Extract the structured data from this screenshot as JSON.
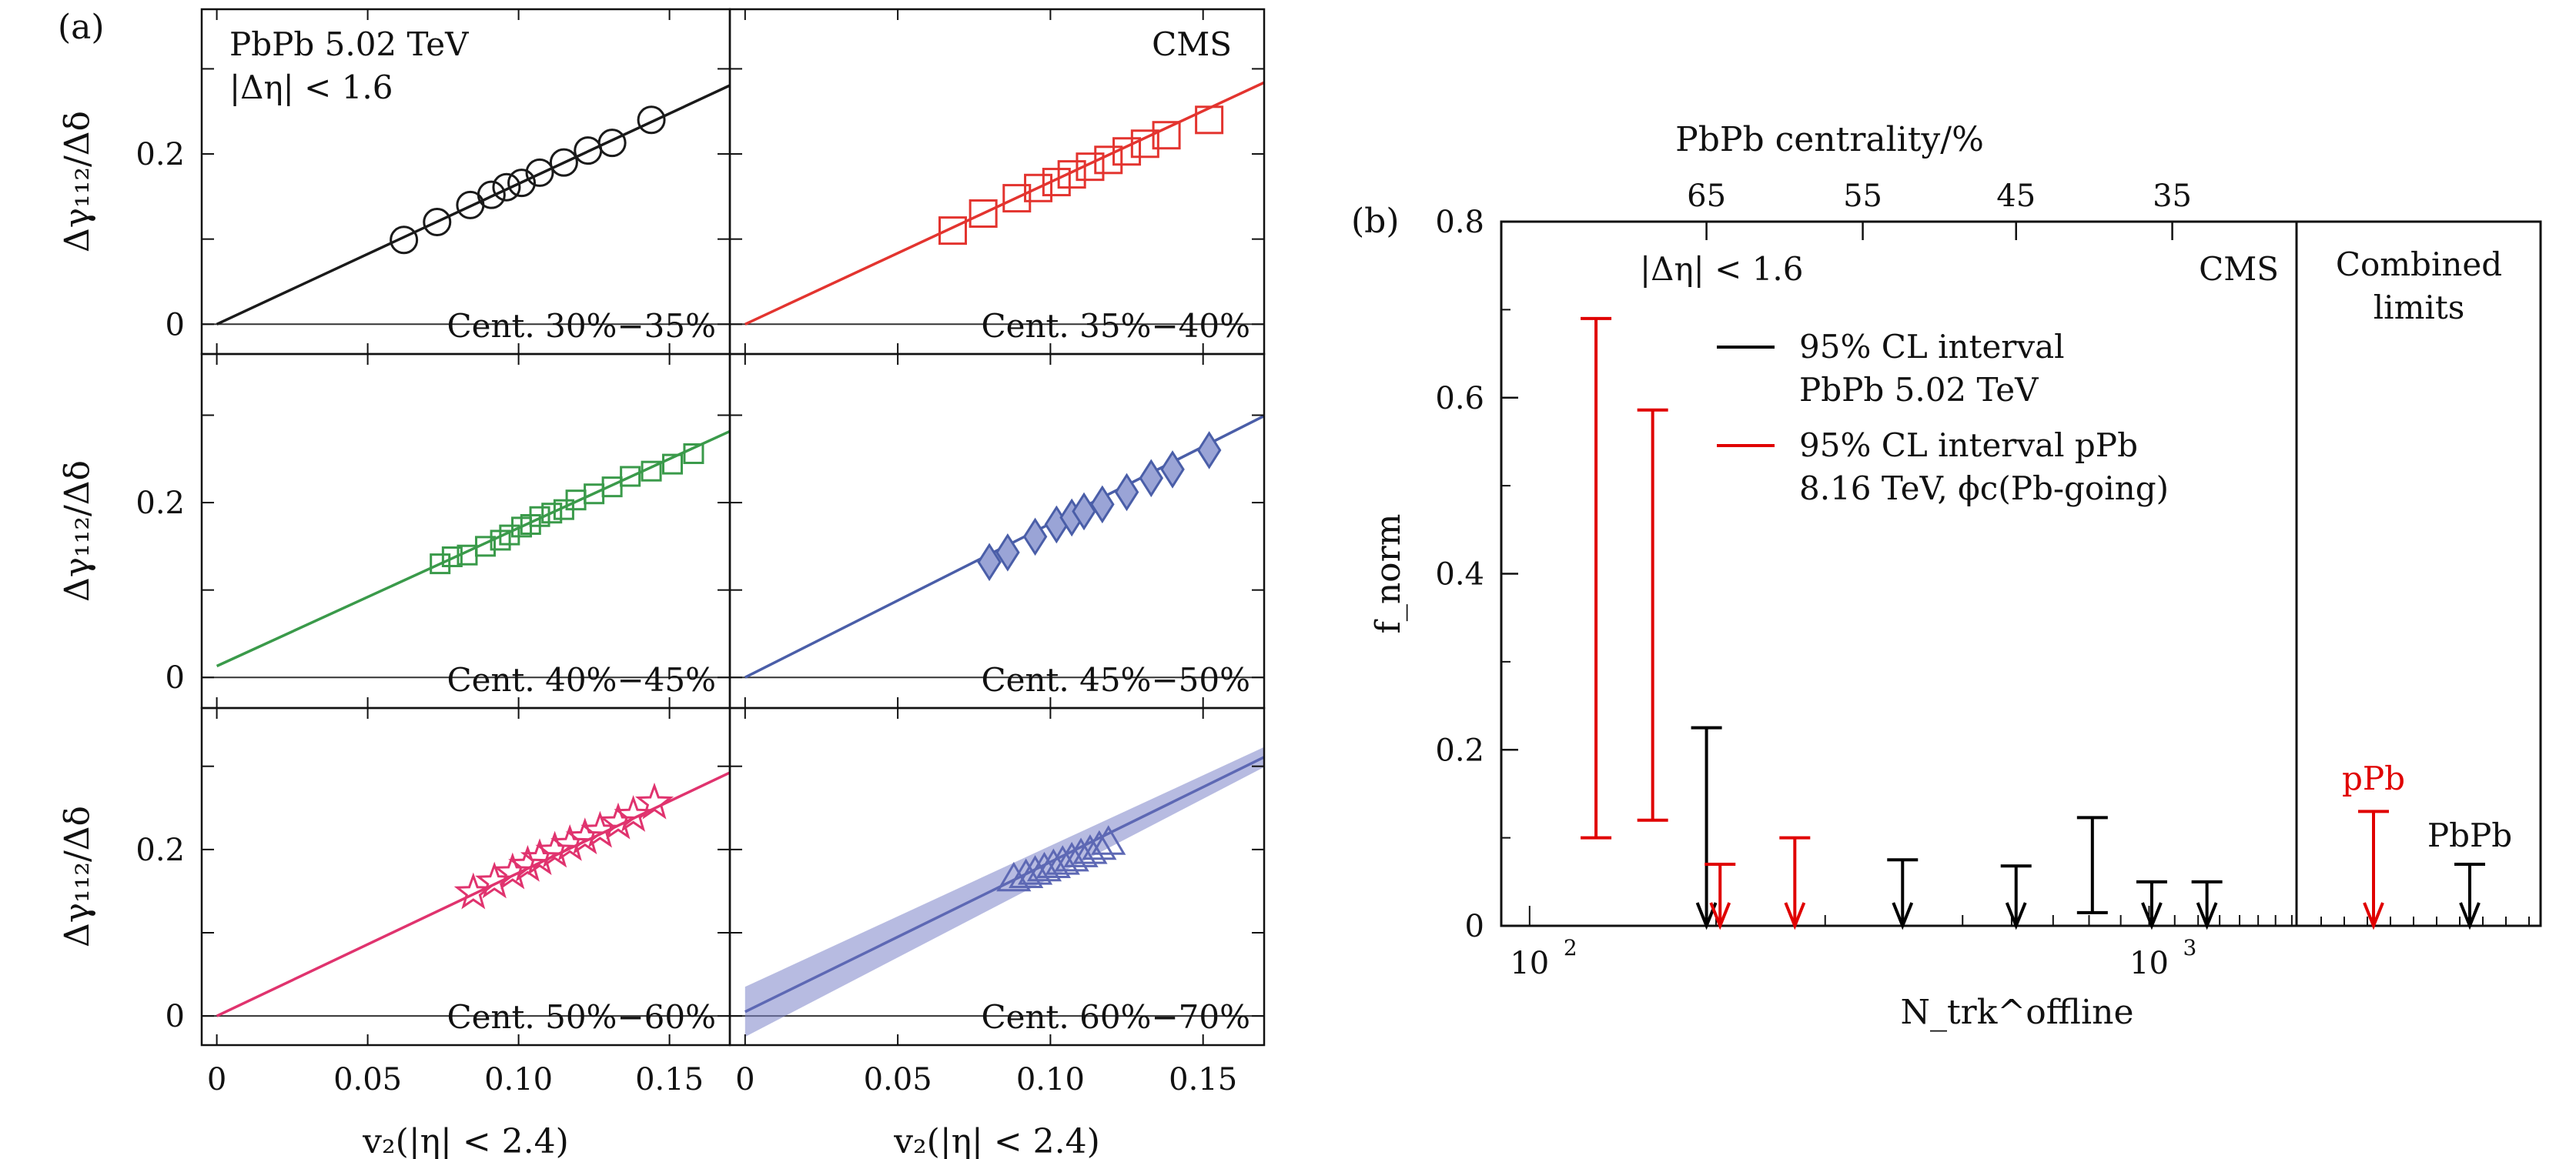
{
  "chart_data": [
    {
      "id": "a",
      "type": "scatter",
      "panel_label": "(a)",
      "system_label": "PbPb 5.02 TeV",
      "eta_label": "|Δη| < 1.6",
      "experiment": "CMS",
      "xlabel": "v₂(|η| < 2.4)",
      "ylabel": "Δγ₁₁₂/Δδ",
      "xlim": [
        -0.005,
        0.17
      ],
      "ylim": [
        -0.035,
        0.37
      ],
      "xticks": [
        "0",
        "0.05",
        "0.10",
        "0.15"
      ],
      "yticks": [
        "0",
        "0.2"
      ],
      "panels": [
        {
          "label": "Cent. 30%−35%",
          "color": "#1a1a1a",
          "marker": "circle",
          "x": [
            0.062,
            0.073,
            0.084,
            0.091,
            0.096,
            0.101,
            0.107,
            0.115,
            0.123,
            0.131,
            0.144
          ],
          "y": [
            0.099,
            0.12,
            0.14,
            0.152,
            0.161,
            0.166,
            0.178,
            0.19,
            0.204,
            0.213,
            0.24
          ],
          "fit": {
            "slope": 1.65,
            "intercept": 0.0
          }
        },
        {
          "label": "Cent. 35%−40%",
          "color": "#e3342f",
          "marker": "square",
          "x": [
            0.068,
            0.078,
            0.089,
            0.096,
            0.102,
            0.107,
            0.113,
            0.119,
            0.125,
            0.131,
            0.138,
            0.152
          ],
          "y": [
            0.11,
            0.13,
            0.148,
            0.16,
            0.167,
            0.176,
            0.185,
            0.193,
            0.203,
            0.212,
            0.222,
            0.24
          ],
          "fit": {
            "slope": 1.67,
            "intercept": 0.0
          }
        },
        {
          "label": "Cent. 40%−45%",
          "color": "#3a9a4a",
          "marker": "square-small",
          "x": [
            0.074,
            0.078,
            0.083,
            0.089,
            0.094,
            0.097,
            0.101,
            0.104,
            0.107,
            0.111,
            0.115,
            0.119,
            0.125,
            0.131,
            0.137,
            0.144,
            0.151,
            0.158
          ],
          "y": [
            0.13,
            0.138,
            0.14,
            0.15,
            0.157,
            0.163,
            0.172,
            0.175,
            0.184,
            0.188,
            0.192,
            0.203,
            0.21,
            0.218,
            0.23,
            0.236,
            0.244,
            0.256
          ],
          "fit": {
            "slope": 1.58,
            "intercept": 0.013
          }
        },
        {
          "label": "Cent. 45%−50%",
          "color": "#4a5ea8",
          "marker": "diamond",
          "x": [
            0.08,
            0.086,
            0.095,
            0.102,
            0.107,
            0.111,
            0.117,
            0.125,
            0.133,
            0.14,
            0.152
          ],
          "y": [
            0.132,
            0.143,
            0.161,
            0.175,
            0.183,
            0.19,
            0.198,
            0.212,
            0.228,
            0.238,
            0.26
          ],
          "fit": {
            "slope": 1.76,
            "intercept": 0.0
          }
        },
        {
          "label": "Cent. 50%−60%",
          "color": "#e0336e",
          "marker": "star",
          "x": [
            0.085,
            0.092,
            0.098,
            0.103,
            0.107,
            0.112,
            0.117,
            0.122,
            0.127,
            0.133,
            0.138,
            0.145
          ],
          "y": [
            0.148,
            0.161,
            0.172,
            0.181,
            0.189,
            0.198,
            0.206,
            0.214,
            0.222,
            0.232,
            0.241,
            0.256
          ],
          "fit": {
            "slope": 1.72,
            "intercept": 0.0
          }
        },
        {
          "label": "Cent. 60%−70%",
          "color": "#5d68b4",
          "marker": "triangle",
          "x": [
            0.088,
            0.092,
            0.095,
            0.098,
            0.101,
            0.104,
            0.107,
            0.11,
            0.113,
            0.116,
            0.119
          ],
          "y": [
            0.164,
            0.168,
            0.172,
            0.176,
            0.18,
            0.184,
            0.188,
            0.193,
            0.197,
            0.202,
            0.208
          ],
          "fit": {
            "slope": 1.8,
            "intercept": 0.005
          }
        }
      ]
    },
    {
      "id": "b",
      "type": "interval",
      "panel_label": "(b)",
      "experiment": "CMS",
      "eta_label": "|Δη| < 1.6",
      "ylabel": "f_norm",
      "xlabel": "N_trk^offline",
      "xscale": "log",
      "xlim": [
        90,
        1730
      ],
      "ylim": [
        0,
        0.8
      ],
      "yticks": [
        "0",
        "0.2",
        "0.4",
        "0.6",
        "0.8"
      ],
      "xticks": [
        {
          "value": 100,
          "label": "10",
          "exp": "2"
        },
        {
          "value": 1000,
          "label": "10",
          "exp": "3"
        }
      ],
      "top_axis_title": "PbPb centrality/%",
      "top_axis_ticks": [
        {
          "N": 193,
          "label": "65"
        },
        {
          "N": 345,
          "label": "55"
        },
        {
          "N": 610,
          "label": "45"
        },
        {
          "N": 1090,
          "label": "35"
        }
      ],
      "legend": [
        {
          "color": "#000000",
          "lines": [
            "95% CL interval",
            "PbPb 5.02 TeV"
          ]
        },
        {
          "color": "#e00000",
          "lines": [
            "95% CL interval pPb",
            "8.16 TeV, ϕc(Pb-going)"
          ]
        }
      ],
      "intervals": [
        {
          "system": "pPb",
          "N": 128,
          "low": 0.1,
          "high": 0.69
        },
        {
          "system": "pPb",
          "N": 158,
          "low": 0.12,
          "high": 0.586
        },
        {
          "system": "PbPb",
          "N": 193,
          "low": 0.0,
          "high": 0.225
        },
        {
          "system": "pPb",
          "N": 203,
          "low": 0.0,
          "high": 0.07
        },
        {
          "system": "pPb",
          "N": 268,
          "low": 0.0,
          "high": 0.1
        },
        {
          "system": "PbPb",
          "N": 400,
          "low": 0.0,
          "high": 0.075
        },
        {
          "system": "PbPb",
          "N": 610,
          "low": 0.0,
          "high": 0.068
        },
        {
          "system": "PbPb",
          "N": 810,
          "low": 0.015,
          "high": 0.123
        },
        {
          "system": "PbPb",
          "N": 1010,
          "low": 0.0,
          "high": 0.05
        },
        {
          "system": "PbPb",
          "N": 1240,
          "low": 0.0,
          "high": 0.05
        }
      ],
      "combined": {
        "title_lines": [
          "Combined",
          "limits"
        ],
        "limits": [
          {
            "label": "pPb",
            "color": "#e00000",
            "high": 0.13
          },
          {
            "label": "PbPb",
            "color": "#000000",
            "high": 0.07
          }
        ]
      }
    }
  ]
}
